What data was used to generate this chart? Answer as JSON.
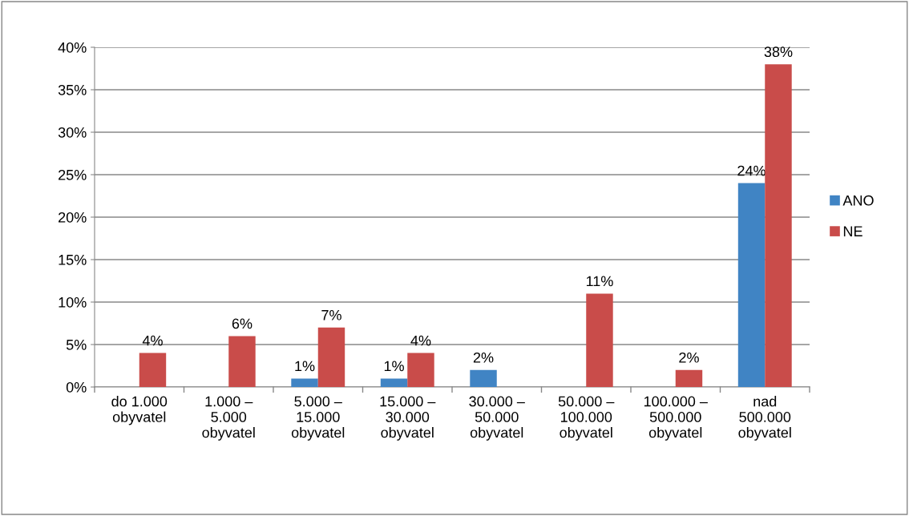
{
  "chart_data": {
    "type": "bar",
    "categories": [
      "do 1.000\nobyvatel",
      "1.000 –\n5.000\nobyvatel",
      "5.000 –\n15.000\nobyvatel",
      "15.000 –\n30.000\nobyvatel",
      "30.000 –\n50.000\nobyvatel",
      "50.000 –\n100.000\nobyvatel",
      "100.000 –\n500.000\nobyvatel",
      "nad\n500.000\nobyvatel"
    ],
    "series": [
      {
        "name": "ANO",
        "color": "#4084c4",
        "values": [
          null,
          null,
          1,
          1,
          2,
          null,
          null,
          24
        ],
        "value_labels": [
          null,
          null,
          "1%",
          "1%",
          "2%",
          null,
          null,
          "24%"
        ]
      },
      {
        "name": "NE",
        "color": "#c94c4a",
        "values": [
          4,
          6,
          7,
          4,
          null,
          11,
          2,
          38
        ],
        "value_labels": [
          "4%",
          "6%",
          "7%",
          "4%",
          null,
          "11%",
          "2%",
          "38%"
        ]
      }
    ],
    "ylim": [
      0,
      40
    ],
    "yticks": [
      {
        "value": 0,
        "label": "0%"
      },
      {
        "value": 5,
        "label": "5%"
      },
      {
        "value": 10,
        "label": "10%"
      },
      {
        "value": 15,
        "label": "15%"
      },
      {
        "value": 20,
        "label": "20%"
      },
      {
        "value": 25,
        "label": "25%"
      },
      {
        "value": 30,
        "label": "30%"
      },
      {
        "value": 35,
        "label": "35%"
      },
      {
        "value": 40,
        "label": "40%"
      }
    ],
    "grid": "y",
    "legend": "right"
  }
}
